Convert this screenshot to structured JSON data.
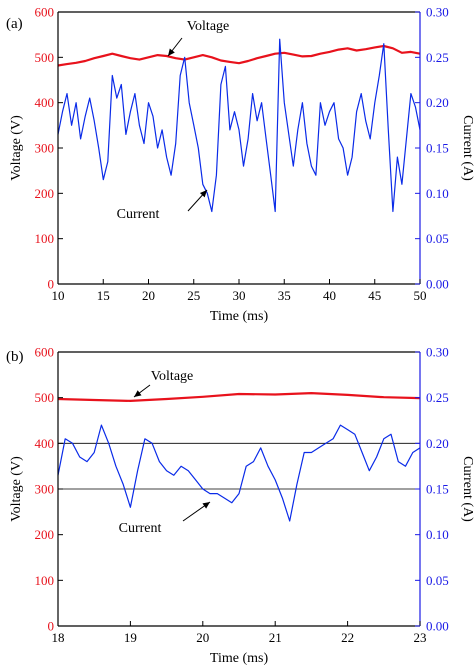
{
  "colors": {
    "voltage": "#e8121c",
    "current": "#0a2be8",
    "axis": "#000000",
    "right_axis": "#1a1ae6",
    "ref_line": "#000000"
  },
  "chart_data": [
    {
      "type": "line",
      "panel_label": "(a)",
      "xlabel": "Time (ms)",
      "ylabel_left": "Voltage (V)",
      "ylabel_right": "Current (A)",
      "xlim": [
        10,
        50
      ],
      "ylim_left": [
        0,
        600
      ],
      "ylim_right": [
        0,
        0.3
      ],
      "x_ticks": [
        "10",
        "15",
        "20",
        "25",
        "30",
        "35",
        "40",
        "45",
        "50"
      ],
      "y_left_ticks": [
        "0",
        "100",
        "200",
        "300",
        "400",
        "500",
        "600"
      ],
      "y_right_ticks": [
        "0.00",
        "0.05",
        "0.10",
        "0.15",
        "0.20",
        "0.25",
        "0.30"
      ],
      "grid": false,
      "reference_lines": [],
      "series": [
        {
          "name": "Voltage",
          "axis": "left",
          "x": [
            10,
            11,
            12,
            13,
            14,
            15,
            16,
            17,
            18,
            19,
            20,
            21,
            22,
            23,
            24,
            25,
            26,
            27,
            28,
            29,
            30,
            31,
            32,
            33,
            34,
            35,
            36,
            37,
            38,
            39,
            40,
            41,
            42,
            43,
            44,
            45,
            46,
            47,
            48,
            49,
            50
          ],
          "values": [
            482,
            485,
            488,
            492,
            498,
            503,
            508,
            503,
            498,
            495,
            500,
            505,
            503,
            498,
            495,
            500,
            505,
            500,
            493,
            490,
            487,
            492,
            498,
            503,
            508,
            510,
            506,
            502,
            503,
            508,
            512,
            517,
            520,
            515,
            518,
            522,
            525,
            520,
            510,
            512,
            508
          ]
        },
        {
          "name": "Current",
          "axis": "right",
          "x": [
            10,
            10.5,
            11,
            11.5,
            12,
            12.5,
            13,
            13.5,
            14,
            14.5,
            15,
            15.5,
            16,
            16.5,
            17,
            17.5,
            18,
            18.5,
            19,
            19.5,
            20,
            20.5,
            21,
            21.5,
            22,
            22.5,
            23,
            23.5,
            24,
            24.5,
            25,
            25.5,
            26,
            26.5,
            27,
            27.5,
            28,
            28.5,
            29,
            29.5,
            30,
            30.5,
            31,
            31.5,
            32,
            32.5,
            33,
            33.5,
            34,
            34.5,
            35,
            35.5,
            36,
            36.5,
            37,
            37.5,
            38,
            38.5,
            39,
            39.5,
            40,
            40.5,
            41,
            41.5,
            42,
            42.5,
            43,
            43.5,
            44,
            44.5,
            45,
            45.5,
            46,
            46.5,
            47,
            47.5,
            48,
            48.5,
            49,
            49.5,
            50
          ],
          "values": [
            0.165,
            0.19,
            0.21,
            0.175,
            0.2,
            0.16,
            0.185,
            0.205,
            0.18,
            0.15,
            0.115,
            0.135,
            0.23,
            0.205,
            0.22,
            0.165,
            0.19,
            0.21,
            0.175,
            0.155,
            0.2,
            0.185,
            0.15,
            0.17,
            0.14,
            0.12,
            0.155,
            0.23,
            0.25,
            0.2,
            0.175,
            0.15,
            0.11,
            0.1,
            0.08,
            0.12,
            0.22,
            0.24,
            0.17,
            0.19,
            0.17,
            0.13,
            0.16,
            0.21,
            0.18,
            0.2,
            0.16,
            0.12,
            0.08,
            0.27,
            0.2,
            0.165,
            0.13,
            0.17,
            0.2,
            0.155,
            0.13,
            0.12,
            0.2,
            0.175,
            0.19,
            0.2,
            0.16,
            0.15,
            0.12,
            0.14,
            0.19,
            0.21,
            0.18,
            0.16,
            0.2,
            0.23,
            0.265,
            0.17,
            0.08,
            0.14,
            0.11,
            0.16,
            0.21,
            0.195,
            0.17
          ]
        }
      ]
    },
    {
      "type": "line",
      "panel_label": "(b)",
      "xlabel": "Time (ms)",
      "ylabel_left": "Voltage (V)",
      "ylabel_right": "Current (A)",
      "xlim": [
        18,
        23
      ],
      "ylim_left": [
        0,
        600
      ],
      "ylim_right": [
        0,
        0.3
      ],
      "x_ticks": [
        "18",
        "19",
        "20",
        "21",
        "22",
        "23"
      ],
      "y_left_ticks": [
        "0",
        "100",
        "200",
        "300",
        "400",
        "500",
        "600"
      ],
      "y_right_ticks": [
        "0.00",
        "0.05",
        "0.10",
        "0.15",
        "0.20",
        "0.25",
        "0.30"
      ],
      "grid": false,
      "reference_lines": [
        400,
        300
      ],
      "series": [
        {
          "name": "Voltage",
          "axis": "left",
          "x": [
            18,
            18.5,
            19,
            19.5,
            20,
            20.5,
            21,
            21.5,
            22,
            22.5,
            23
          ],
          "values": [
            497,
            495,
            493,
            497,
            502,
            508,
            507,
            510,
            506,
            501,
            499
          ]
        },
        {
          "name": "Current",
          "axis": "right",
          "x": [
            18,
            18.1,
            18.2,
            18.3,
            18.4,
            18.5,
            18.6,
            18.7,
            18.8,
            18.9,
            19,
            19.1,
            19.2,
            19.3,
            19.4,
            19.5,
            19.6,
            19.7,
            19.8,
            19.9,
            20,
            20.1,
            20.2,
            20.3,
            20.4,
            20.5,
            20.6,
            20.7,
            20.8,
            20.9,
            21,
            21.1,
            21.2,
            21.3,
            21.4,
            21.5,
            21.6,
            21.7,
            21.8,
            21.9,
            22,
            22.1,
            22.2,
            22.3,
            22.4,
            22.5,
            22.6,
            22.7,
            22.8,
            22.9,
            23
          ],
          "values": [
            0.165,
            0.205,
            0.2,
            0.185,
            0.18,
            0.19,
            0.22,
            0.2,
            0.175,
            0.155,
            0.13,
            0.17,
            0.205,
            0.2,
            0.18,
            0.17,
            0.165,
            0.175,
            0.17,
            0.16,
            0.15,
            0.145,
            0.145,
            0.14,
            0.135,
            0.145,
            0.175,
            0.18,
            0.195,
            0.175,
            0.16,
            0.14,
            0.115,
            0.155,
            0.19,
            0.19,
            0.195,
            0.2,
            0.205,
            0.22,
            0.215,
            0.21,
            0.19,
            0.17,
            0.185,
            0.205,
            0.21,
            0.18,
            0.175,
            0.19,
            0.195
          ]
        }
      ]
    }
  ]
}
